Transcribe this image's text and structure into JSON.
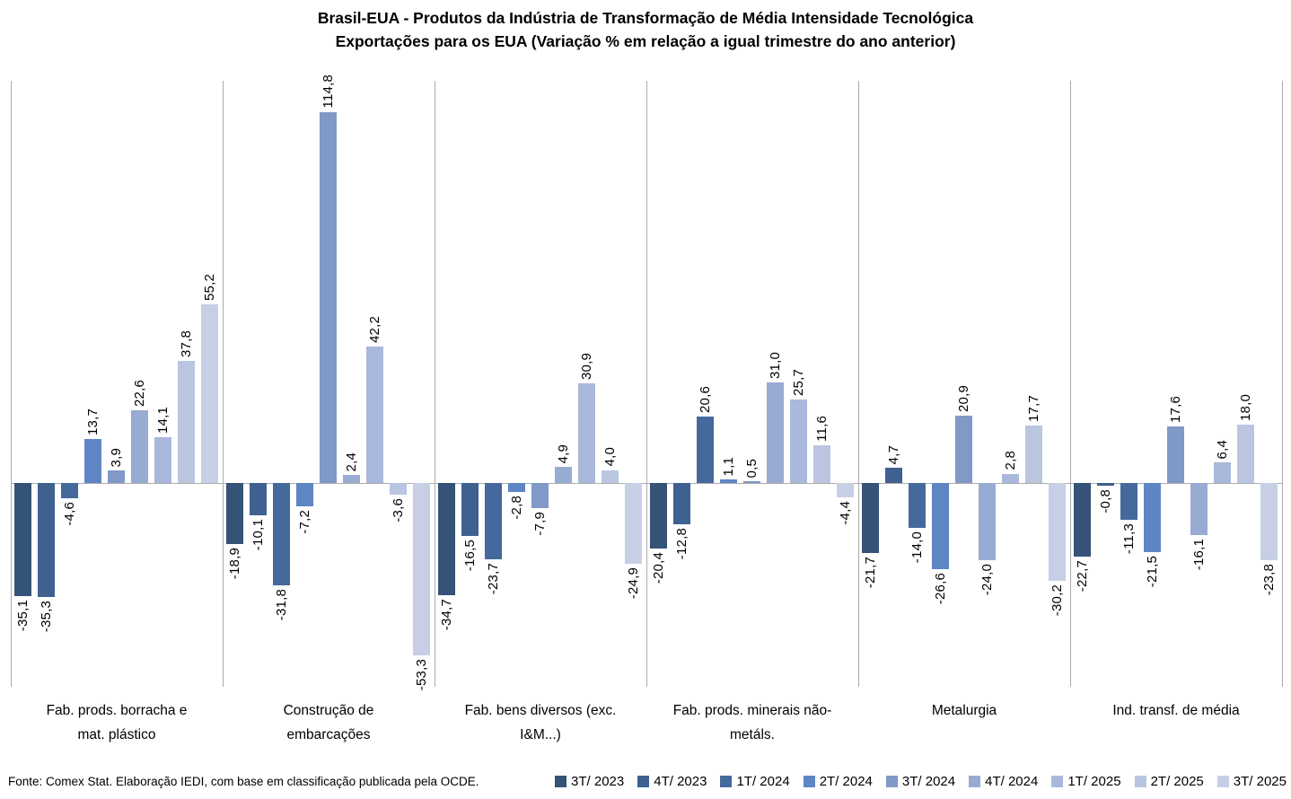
{
  "title": {
    "line1": "Brasil-EUA - Produtos da Indústria de Transformação de Média Intensidade Tecnológica",
    "line2": "Exportações para os EUA (Variação % em relação a igual trimestre do ano anterior)"
  },
  "source": "Fonte: Comex Stat. Elaboração IEDI, com base em classificação publicada pela OCDE.",
  "chart_data": {
    "type": "bar",
    "title": "Brasil-EUA - Produtos da Indústria de Transformação de Média Intensidade Tecnológica",
    "subtitle": "Exportações para os EUA (Variação % em relação a igual trimestre do ano anterior)",
    "categories": [
      "Fab. prods. borracha e\nmat. plástico",
      "Construção de\nembarcações",
      "Fab. bens diversos (exc.\nI&M...)",
      "Fab. prods. minerais não-\nmetáls.",
      "Metalurgia",
      "Ind. transf. de média"
    ],
    "series": [
      {
        "name": "3T/ 2023",
        "color": "#355377",
        "values": [
          -35.1,
          -18.9,
          -34.7,
          -20.4,
          -21.7,
          -22.7
        ]
      },
      {
        "name": "4T/ 2023",
        "color": "#3e6190",
        "values": [
          -35.3,
          -10.1,
          -16.5,
          -12.8,
          4.7,
          -0.8
        ]
      },
      {
        "name": "1T/ 2024",
        "color": "#45699c",
        "values": [
          -4.6,
          -31.8,
          -23.7,
          20.6,
          -14.0,
          -11.3
        ]
      },
      {
        "name": "2T/ 2024",
        "color": "#5e86c4",
        "values": [
          13.7,
          -7.2,
          -2.8,
          1.1,
          -26.6,
          -21.5
        ]
      },
      {
        "name": "3T/ 2024",
        "color": "#8099c6",
        "values": [
          3.9,
          114.8,
          -7.9,
          0.5,
          20.9,
          17.6
        ]
      },
      {
        "name": "4T/ 2024",
        "color": "#98abd3",
        "values": [
          22.6,
          2.4,
          4.9,
          31.0,
          -24.0,
          -16.1
        ]
      },
      {
        "name": "1T/ 2025",
        "color": "#a9b8db",
        "values": [
          14.1,
          42.2,
          30.9,
          25.7,
          2.8,
          6.4
        ]
      },
      {
        "name": "2T/ 2025",
        "color": "#bac5e0",
        "values": [
          37.8,
          -3.6,
          4.0,
          11.6,
          17.7,
          18.0
        ]
      },
      {
        "name": "3T/ 2025",
        "color": "#c6cfe5",
        "values": [
          55.2,
          -53.3,
          -24.9,
          -4.4,
          -30.2,
          -23.8
        ]
      }
    ],
    "value_labels": "one decimal, comma as decimal separator, rotated 90° reading bottom-to-top",
    "ylim": [
      -63,
      125
    ],
    "grid": "vertical category separators only, no y-axis ticks",
    "axis_color": "#ababab",
    "legend_position": "bottom-right"
  }
}
